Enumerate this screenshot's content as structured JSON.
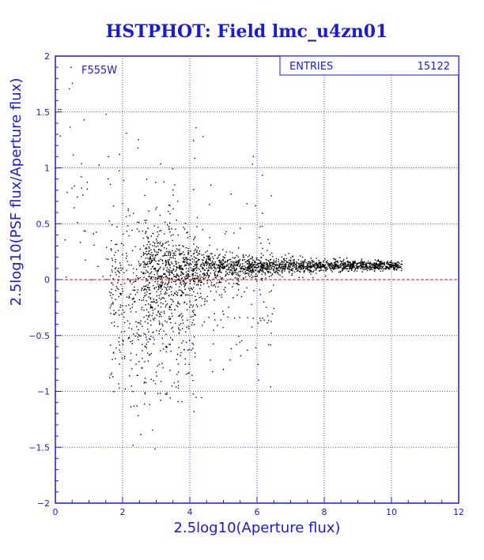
{
  "chart_data": {
    "type": "scatter",
    "title": "HSTPHOT: Field lmc_u4zn01",
    "xlabel": "2.5log10(Aperture flux)",
    "ylabel": "2.5log10(PSF flux/Aperture flux)",
    "xlim": [
      0,
      12
    ],
    "ylim": [
      -2,
      2
    ],
    "x_ticks": [
      "0",
      "2",
      "4",
      "6",
      "8",
      "10",
      "12"
    ],
    "y_ticks": [
      "-2",
      "-1.5",
      "-1",
      "-0.5",
      "0",
      "0.5",
      "1",
      "1.5",
      "2"
    ],
    "filter_label": "F555W",
    "stats": {
      "label": "ENTRIES",
      "value": "15122"
    },
    "reference_line_y": 0,
    "grid": true,
    "points_shown": 15122,
    "distribution": {
      "bright_limit_x": 10.3,
      "dense_band_y_center_at_x4": 0.13,
      "dense_band_y_center_at_x10": 0.14,
      "faint_scatter_x_range": [
        0,
        4
      ]
    },
    "colors": {
      "frame": "#1a1ad6",
      "grid": "#1a1ad6",
      "points": "#000000",
      "reference_line": "#d81818"
    }
  }
}
